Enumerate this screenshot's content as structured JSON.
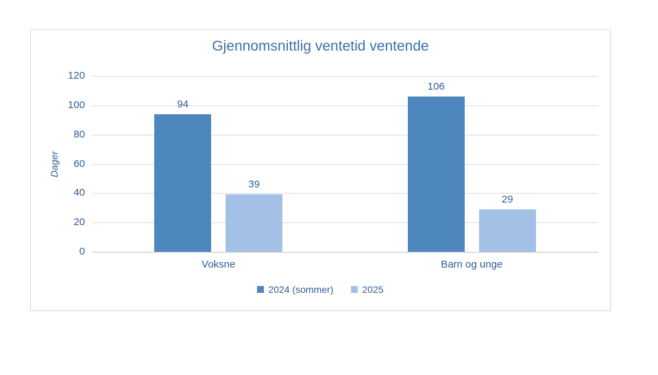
{
  "chart_data": {
    "type": "bar",
    "title": "Gjennomsnittlig ventetid ventende",
    "ylabel": "Dager",
    "xlabel": "",
    "categories": [
      "Voksne",
      "Barn og unge"
    ],
    "series": [
      {
        "name": "2024 (sommer)",
        "color": "#4e86be",
        "values": [
          94,
          106
        ]
      },
      {
        "name": "2025",
        "color": "#a3c0e6",
        "values": [
          39,
          29
        ]
      }
    ],
    "ylim": [
      0,
      120
    ],
    "yticks": [
      0,
      20,
      40,
      60,
      80,
      100,
      120
    ],
    "grid": true,
    "legend_position": "bottom",
    "data_labels_shown": true,
    "colors": {
      "title_text": "#3a70ad",
      "axis_text": "#2f5c96",
      "gridline": "#dcdcdc",
      "chart_border": "#d9d9d9",
      "background": "#ffffff"
    }
  }
}
